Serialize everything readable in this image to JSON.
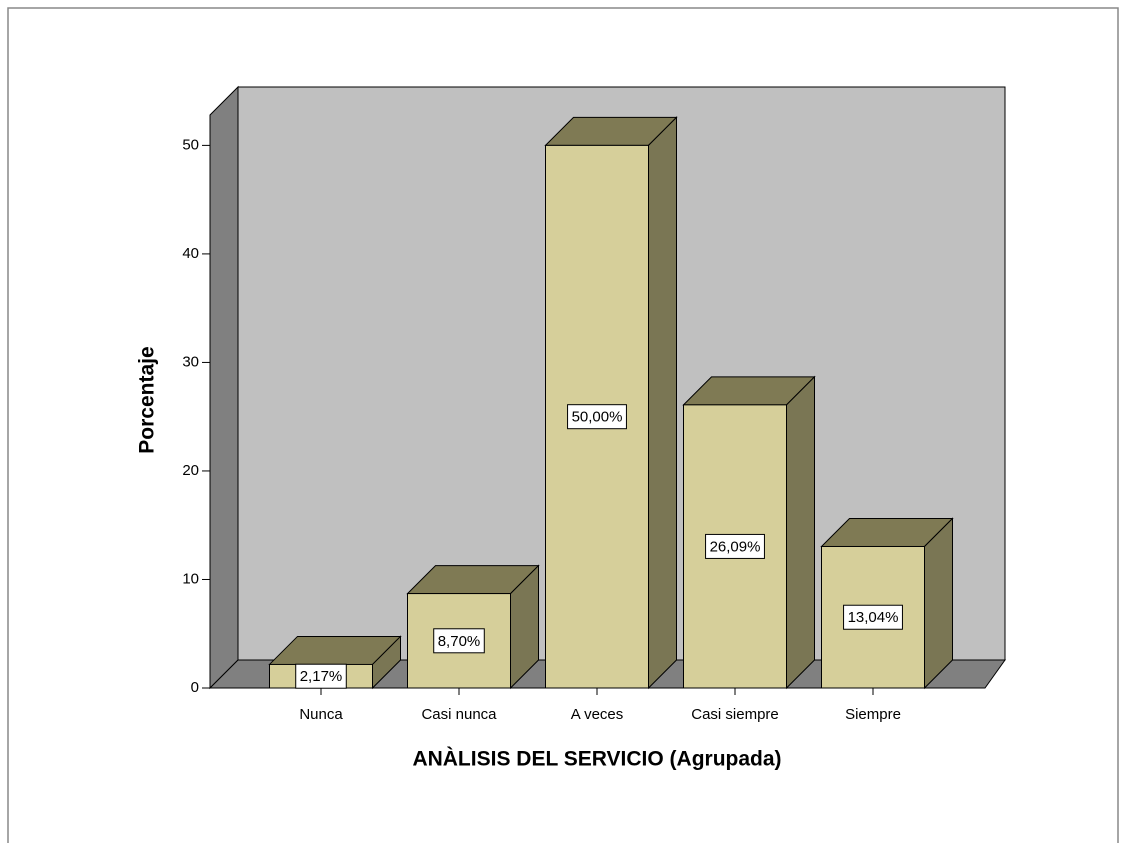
{
  "chart_data": {
    "type": "bar3d",
    "x_label": "ANÀLISIS DEL SERVICIO (Agrupada)",
    "y_label": "Porcentaje",
    "categories": [
      "Nunca",
      "Casi nunca",
      "A veces",
      "Casi siempre",
      "Siempre"
    ],
    "values": [
      2.17,
      8.7,
      50.0,
      26.09,
      13.04
    ],
    "value_labels": [
      "2,17%",
      "8,70%",
      "50,00%",
      "26,09%",
      "13,04%"
    ],
    "color": "#d6cf9a",
    "ylim": [
      0,
      52.8
    ],
    "yticks": [
      0,
      10,
      20,
      30,
      40,
      50
    ]
  }
}
